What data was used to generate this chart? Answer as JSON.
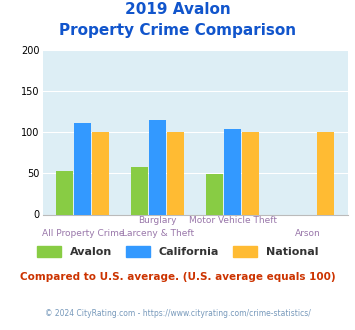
{
  "title_line1": "2019 Avalon",
  "title_line2": "Property Crime Comparison",
  "series": {
    "Avalon": [
      53,
      57,
      49,
      0
    ],
    "California": [
      111,
      114,
      104,
      0
    ],
    "National": [
      100,
      100,
      100,
      100
    ]
  },
  "colors": {
    "Avalon": "#88cc44",
    "California": "#3399ff",
    "National": "#ffbb33"
  },
  "top_labels": [
    "",
    "Burglary",
    "Motor Vehicle Theft",
    ""
  ],
  "bot_labels": [
    "All Property Crime",
    "Larceny & Theft",
    "",
    "Arson"
  ],
  "ylim": [
    0,
    200
  ],
  "yticks": [
    0,
    50,
    100,
    150,
    200
  ],
  "background_color": "#ddeef5",
  "title_color": "#1155cc",
  "xlabel_color": "#9977aa",
  "footer_text": "Compared to U.S. average. (U.S. average equals 100)",
  "footer_color": "#cc3300",
  "copyright_text": "© 2024 CityRating.com - https://www.cityrating.com/crime-statistics/",
  "copyright_color": "#7799bb",
  "legend_labels": [
    "Avalon",
    "California",
    "National"
  ]
}
